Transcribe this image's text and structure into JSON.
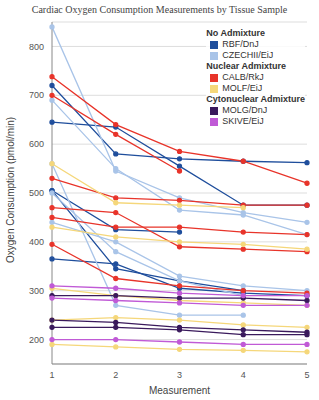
{
  "chart_data": {
    "type": "line",
    "title": "Cardiac Oxygen Consumption Measurements by Tissue Sample",
    "x_label": "Measurement",
    "y_label": "Oxygen Consumption (pmol/min)",
    "categories": [
      "1",
      "2",
      "3",
      "4",
      "5"
    ],
    "ylim": [
      150,
      850
    ],
    "yticks": [
      200,
      300,
      400,
      500,
      600,
      700,
      800
    ],
    "grid": true,
    "legend": "upper right",
    "marker": "circle",
    "legend_groups": [
      {
        "title": "No Admixture",
        "names": [
          "RBF/DnJ",
          "CZECHII/EiJ"
        ]
      },
      {
        "title": "Nuclear Admixture",
        "names": [
          "CALB/RkJ",
          "MOLF/EiJ"
        ]
      },
      {
        "title": "Cytonuclear Admixture",
        "names": [
          "MOLG/DnJ",
          "SKIVE/EiJ"
        ]
      }
    ],
    "series": [
      {
        "name": "RBF/DnJ",
        "color": "#1f4e9c",
        "values": [
          720,
          580,
          570,
          565,
          562
        ]
      },
      {
        "name": "RBF/DnJ",
        "color": "#1f4e9c",
        "values": [
          645,
          635,
          555,
          475,
          475
        ]
      },
      {
        "name": "RBF/DnJ",
        "color": "#1f4e9c",
        "values": [
          505,
          425,
          420,
          null,
          null
        ]
      },
      {
        "name": "RBF/DnJ",
        "color": "#1f4e9c",
        "values": [
          365,
          355,
          305,
          295,
          290
        ]
      },
      {
        "name": "RBF/DnJ",
        "color": "#1f4e9c",
        "values": [
          505,
          345,
          320,
          300,
          null
        ]
      },
      {
        "name": "CZECHII/EiJ",
        "color": "#a9c4e8",
        "values": [
          840,
          545,
          490,
          460,
          440
        ]
      },
      {
        "name": "CZECHII/EiJ",
        "color": "#a9c4e8",
        "values": [
          690,
          550,
          465,
          455,
          415
        ]
      },
      {
        "name": "CZECHII/EiJ",
        "color": "#a9c4e8",
        "values": [
          560,
          270,
          250,
          250,
          null
        ]
      },
      {
        "name": "CZECHII/EiJ",
        "color": "#a9c4e8",
        "values": [
          440,
          400,
          330,
          310,
          300
        ]
      },
      {
        "name": "CZECHII/EiJ",
        "color": "#a9c4e8",
        "values": [
          500,
          380,
          320,
          290,
          null
        ]
      },
      {
        "name": "CALB/RkJ",
        "color": "#e8342a",
        "values": [
          738,
          640,
          585,
          565,
          520
        ]
      },
      {
        "name": "CALB/RkJ",
        "color": "#e8342a",
        "values": [
          700,
          620,
          545,
          null,
          null
        ]
      },
      {
        "name": "CALB/RkJ",
        "color": "#e8342a",
        "values": [
          530,
          490,
          485,
          475,
          475
        ]
      },
      {
        "name": "CALB/RkJ",
        "color": "#e8342a",
        "values": [
          470,
          460,
          390,
          385,
          380
        ]
      },
      {
        "name": "CALB/RkJ",
        "color": "#e8342a",
        "values": [
          395,
          325,
          310,
          300,
          295
        ]
      },
      {
        "name": "CALB/RkJ",
        "color": "#e8342a",
        "values": [
          450,
          430,
          430,
          420,
          415
        ]
      },
      {
        "name": "MOLF/EiJ",
        "color": "#f5d77a",
        "values": [
          560,
          480,
          475,
          470,
          null
        ]
      },
      {
        "name": "MOLF/EiJ",
        "color": "#f5d77a",
        "values": [
          430,
          410,
          400,
          395,
          385
        ]
      },
      {
        "name": "MOLF/EiJ",
        "color": "#f5d77a",
        "values": [
          240,
          245,
          240,
          230,
          225
        ]
      },
      {
        "name": "MOLF/EiJ",
        "color": "#f5d77a",
        "values": [
          190,
          185,
          180,
          178,
          175
        ]
      },
      {
        "name": "MOLF/EiJ",
        "color": "#f5d77a",
        "values": [
          305,
          290,
          280,
          275,
          270
        ]
      },
      {
        "name": "MOLG/DnJ",
        "color": "#3a1a5c",
        "values": [
          290,
          290,
          285,
          285,
          280
        ]
      },
      {
        "name": "MOLG/DnJ",
        "color": "#3a1a5c",
        "values": [
          240,
          235,
          225,
          220,
          215
        ]
      },
      {
        "name": "MOLG/DnJ",
        "color": "#3a1a5c",
        "values": [
          225,
          225,
          220,
          210,
          210
        ]
      },
      {
        "name": "SKIVE/EiJ",
        "color": "#c05ad6",
        "values": [
          310,
          305,
          295,
          290,
          290
        ]
      },
      {
        "name": "SKIVE/EiJ",
        "color": "#c05ad6",
        "values": [
          200,
          200,
          195,
          190,
          190
        ]
      },
      {
        "name": "SKIVE/EiJ",
        "color": "#c05ad6",
        "values": [
          285,
          280,
          275,
          270,
          270
        ]
      }
    ]
  }
}
